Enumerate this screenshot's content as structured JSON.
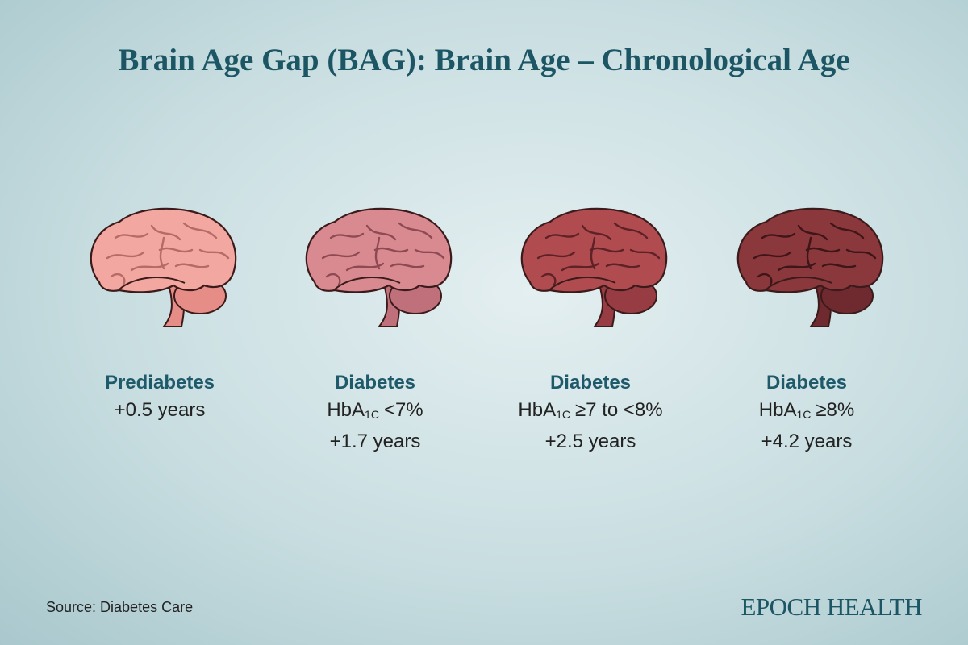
{
  "header": {
    "title": "Brain Age Gap (BAG): Brain Age – Chronological Age"
  },
  "items": [
    {
      "heading": "Prediabetes",
      "gap": "+0.5 years"
    },
    {
      "heading": "Diabetes",
      "marker": {
        "base": "HbA",
        "sub": "1C",
        "rest": "<7%"
      },
      "gap": "+1.7 years"
    },
    {
      "heading": "Diabetes",
      "marker": {
        "base": "HbA",
        "sub": "1C",
        "rest": "≥7 to <8%"
      },
      "gap": "+2.5 years"
    },
    {
      "heading": "Diabetes",
      "marker": {
        "base": "HbA",
        "sub": "1C",
        "rest": "≥8%"
      },
      "gap": "+4.2 years"
    }
  ],
  "footer": {
    "source": "Source: Diabetes Care",
    "logo": "EPOCH HEALTH"
  }
}
